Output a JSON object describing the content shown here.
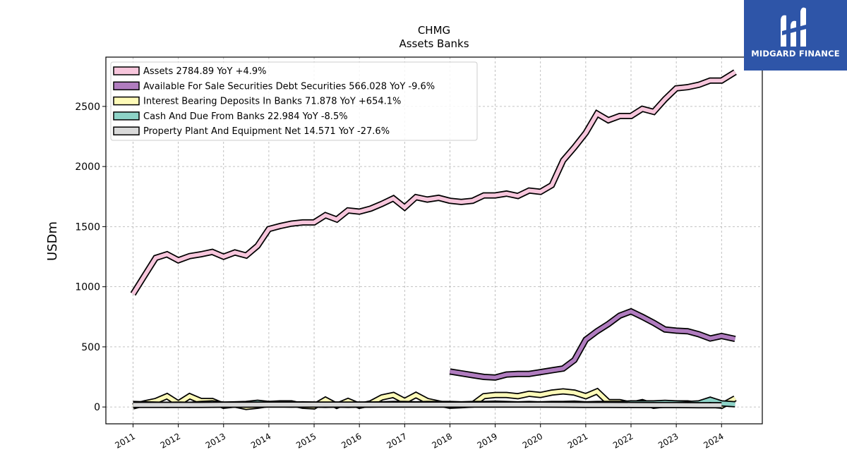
{
  "logo": {
    "text": "MIDGARD FINANCE"
  },
  "chart_data": {
    "type": "area",
    "title": "CHMG",
    "subtitle": "Assets Banks",
    "ylabel": "USDm",
    "xlabel": "",
    "xlim": [
      2010.4,
      2024.9
    ],
    "ylim": [
      -140,
      2910
    ],
    "yticks": [
      0,
      500,
      1000,
      1500,
      2000,
      2500
    ],
    "xticks": [
      2011,
      2012,
      2013,
      2014,
      2015,
      2016,
      2017,
      2018,
      2019,
      2020,
      2021,
      2022,
      2023,
      2024
    ],
    "grid": true,
    "legend_position": "top-left",
    "series": [
      {
        "name": "Assets  2784.89 YoY +4.9%",
        "color": "#f7c6dc",
        "x": [
          2011.0,
          2011.25,
          2011.5,
          2011.75,
          2012.0,
          2012.25,
          2012.5,
          2012.75,
          2013.0,
          2013.25,
          2013.5,
          2013.75,
          2014.0,
          2014.25,
          2014.5,
          2014.75,
          2015.0,
          2015.25,
          2015.5,
          2015.75,
          2016.0,
          2016.25,
          2016.5,
          2016.75,
          2017.0,
          2017.25,
          2017.5,
          2017.75,
          2018.0,
          2018.25,
          2018.5,
          2018.75,
          2019.0,
          2019.25,
          2019.5,
          2019.75,
          2020.0,
          2020.25,
          2020.5,
          2020.75,
          2021.0,
          2021.25,
          2021.5,
          2021.75,
          2022.0,
          2022.25,
          2022.5,
          2022.75,
          2023.0,
          2023.25,
          2023.5,
          2023.75,
          2024.0,
          2024.3
        ],
        "y": [
          940,
          1090,
          1240,
          1270,
          1220,
          1255,
          1270,
          1290,
          1250,
          1285,
          1260,
          1340,
          1480,
          1505,
          1525,
          1535,
          1535,
          1595,
          1560,
          1635,
          1625,
          1650,
          1690,
          1735,
          1660,
          1745,
          1725,
          1740,
          1715,
          1705,
          1715,
          1760,
          1760,
          1775,
          1755,
          1800,
          1790,
          1845,
          2050,
          2160,
          2280,
          2440,
          2385,
          2420,
          2420,
          2480,
          2455,
          2560,
          2650,
          2660,
          2680,
          2715,
          2715,
          2785
        ]
      },
      {
        "name": "Available For Sale Securities Debt Securities  566.028 YoY -9.6%",
        "color": "#b07cbf",
        "x": [
          2018.0,
          2018.25,
          2018.5,
          2018.75,
          2019.0,
          2019.25,
          2019.5,
          2019.75,
          2020.0,
          2020.25,
          2020.5,
          2020.75,
          2021.0,
          2021.25,
          2021.5,
          2021.75,
          2022.0,
          2022.25,
          2022.5,
          2022.75,
          2023.0,
          2023.25,
          2023.5,
          2023.75,
          2024.0,
          2024.3
        ],
        "y": [
          295,
          280,
          265,
          250,
          245,
          270,
          275,
          275,
          290,
          305,
          320,
          390,
          560,
          630,
          690,
          760,
          795,
          750,
          700,
          645,
          635,
          630,
          605,
          570,
          590,
          566
        ]
      },
      {
        "name": "Interest Bearing Deposits In Banks  71.878 YoY +654.1%",
        "color": "#fdfab8",
        "x": [
          2011.0,
          2011.25,
          2011.5,
          2011.75,
          2012.0,
          2012.25,
          2012.5,
          2012.75,
          2013.0,
          2013.25,
          2013.5,
          2013.75,
          2014.0,
          2014.25,
          2014.5,
          2014.75,
          2015.0,
          2015.25,
          2015.5,
          2015.75,
          2016.0,
          2016.25,
          2016.5,
          2016.75,
          2017.0,
          2017.25,
          2017.5,
          2017.75,
          2018.0,
          2018.25,
          2018.5,
          2018.75,
          2019.0,
          2019.25,
          2019.5,
          2019.75,
          2020.0,
          2020.25,
          2020.5,
          2020.75,
          2021.0,
          2021.25,
          2021.5,
          2021.75,
          2022.0,
          2022.25,
          2022.5,
          2022.75,
          2023.0,
          2023.25,
          2023.5,
          2023.75,
          2024.0,
          2024.3
        ],
        "y": [
          5,
          30,
          50,
          90,
          30,
          90,
          50,
          50,
          10,
          20,
          0,
          10,
          25,
          30,
          30,
          10,
          5,
          60,
          10,
          50,
          10,
          30,
          80,
          100,
          50,
          100,
          50,
          30,
          10,
          15,
          20,
          90,
          100,
          100,
          90,
          110,
          100,
          120,
          130,
          120,
          90,
          130,
          40,
          40,
          20,
          40,
          10,
          20,
          30,
          30,
          20,
          20,
          10,
          72
        ]
      },
      {
        "name": "Cash And Due From Banks  22.984 YoY -8.5%",
        "color": "#8dd3c7",
        "x": [
          2011.0,
          2011.25,
          2011.5,
          2011.75,
          2012.0,
          2012.25,
          2012.5,
          2012.75,
          2013.0,
          2013.25,
          2013.5,
          2013.75,
          2014.0,
          2014.25,
          2014.5,
          2014.75,
          2015.0,
          2015.25,
          2015.5,
          2015.75,
          2016.0,
          2016.25,
          2016.5,
          2016.75,
          2017.0,
          2017.25,
          2017.5,
          2017.75,
          2018.0,
          2018.25,
          2018.5,
          2018.75,
          2019.0,
          2019.25,
          2019.5,
          2019.75,
          2020.0,
          2020.25,
          2020.5,
          2020.75,
          2021.0,
          2021.25,
          2021.5,
          2021.75,
          2022.0,
          2022.25,
          2022.5,
          2022.75,
          2023.0,
          2023.25,
          2023.5,
          2023.75,
          2024.0,
          2024.3
        ],
        "y": [
          25,
          22,
          20,
          18,
          20,
          18,
          25,
          30,
          20,
          22,
          25,
          35,
          25,
          22,
          20,
          22,
          20,
          18,
          20,
          18,
          20,
          20,
          22,
          25,
          25,
          22,
          25,
          25,
          25,
          22,
          25,
          25,
          28,
          25,
          22,
          25,
          22,
          25,
          25,
          28,
          22,
          25,
          25,
          25,
          30,
          30,
          30,
          35,
          30,
          25,
          30,
          60,
          30,
          23
        ]
      },
      {
        "name": "Property Plant And Equipment Net  14.571 YoY -27.6%",
        "color": "#d9d9d9",
        "x": [
          2011.0,
          2011.5,
          2012.0,
          2012.5,
          2013.0,
          2013.5,
          2014.0,
          2014.5,
          2015.0,
          2015.5,
          2016.0,
          2016.5,
          2017.0,
          2017.5,
          2018.0,
          2018.5,
          2019.0,
          2019.5,
          2020.0,
          2020.5,
          2021.0,
          2021.5,
          2022.0,
          2022.5,
          2023.0,
          2023.5,
          2024.0
        ],
        "y": [
          18,
          18,
          18,
          18,
          19,
          19,
          20,
          20,
          20,
          20,
          20,
          20,
          20,
          20,
          20,
          20,
          20,
          20,
          20,
          19,
          18,
          18,
          17,
          16,
          16,
          15,
          15
        ]
      }
    ]
  }
}
